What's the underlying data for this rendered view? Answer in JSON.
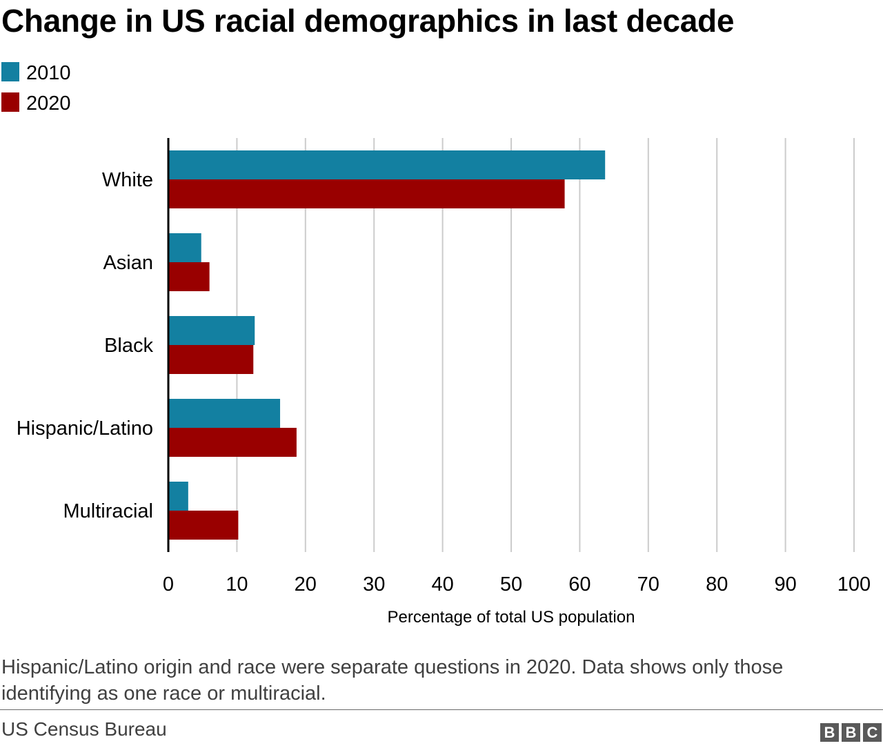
{
  "header": {
    "title": "Change in US racial demographics in last decade"
  },
  "legend": {
    "items": [
      {
        "label": "2010",
        "color": "#1380a1"
      },
      {
        "label": "2020",
        "color": "#990000"
      }
    ]
  },
  "chart_data": {
    "type": "bar",
    "orientation": "horizontal",
    "title": "Change in US racial demographics in last decade",
    "categories": [
      "White",
      "Asian",
      "Black",
      "Hispanic/Latino",
      "Multiracial"
    ],
    "series": [
      {
        "name": "2010",
        "color": "#1380a1",
        "values": [
          63.7,
          4.8,
          12.6,
          16.3,
          2.9
        ]
      },
      {
        "name": "2020",
        "color": "#990000",
        "values": [
          57.8,
          6.0,
          12.4,
          18.7,
          10.2
        ]
      }
    ],
    "xlabel": "Percentage of total US population",
    "ylabel": "",
    "xlim": [
      0,
      100
    ],
    "xticks": [
      0,
      10,
      20,
      30,
      40,
      50,
      60,
      70,
      80,
      90,
      100
    ],
    "grid": true,
    "legend_position": "top-left"
  },
  "footer": {
    "note": "Hispanic/Latino origin and race were separate questions in 2020. Data shows only those identifying as one race or multiracial.",
    "source": "US Census Bureau",
    "logo_letters": [
      "B",
      "B",
      "C"
    ]
  }
}
